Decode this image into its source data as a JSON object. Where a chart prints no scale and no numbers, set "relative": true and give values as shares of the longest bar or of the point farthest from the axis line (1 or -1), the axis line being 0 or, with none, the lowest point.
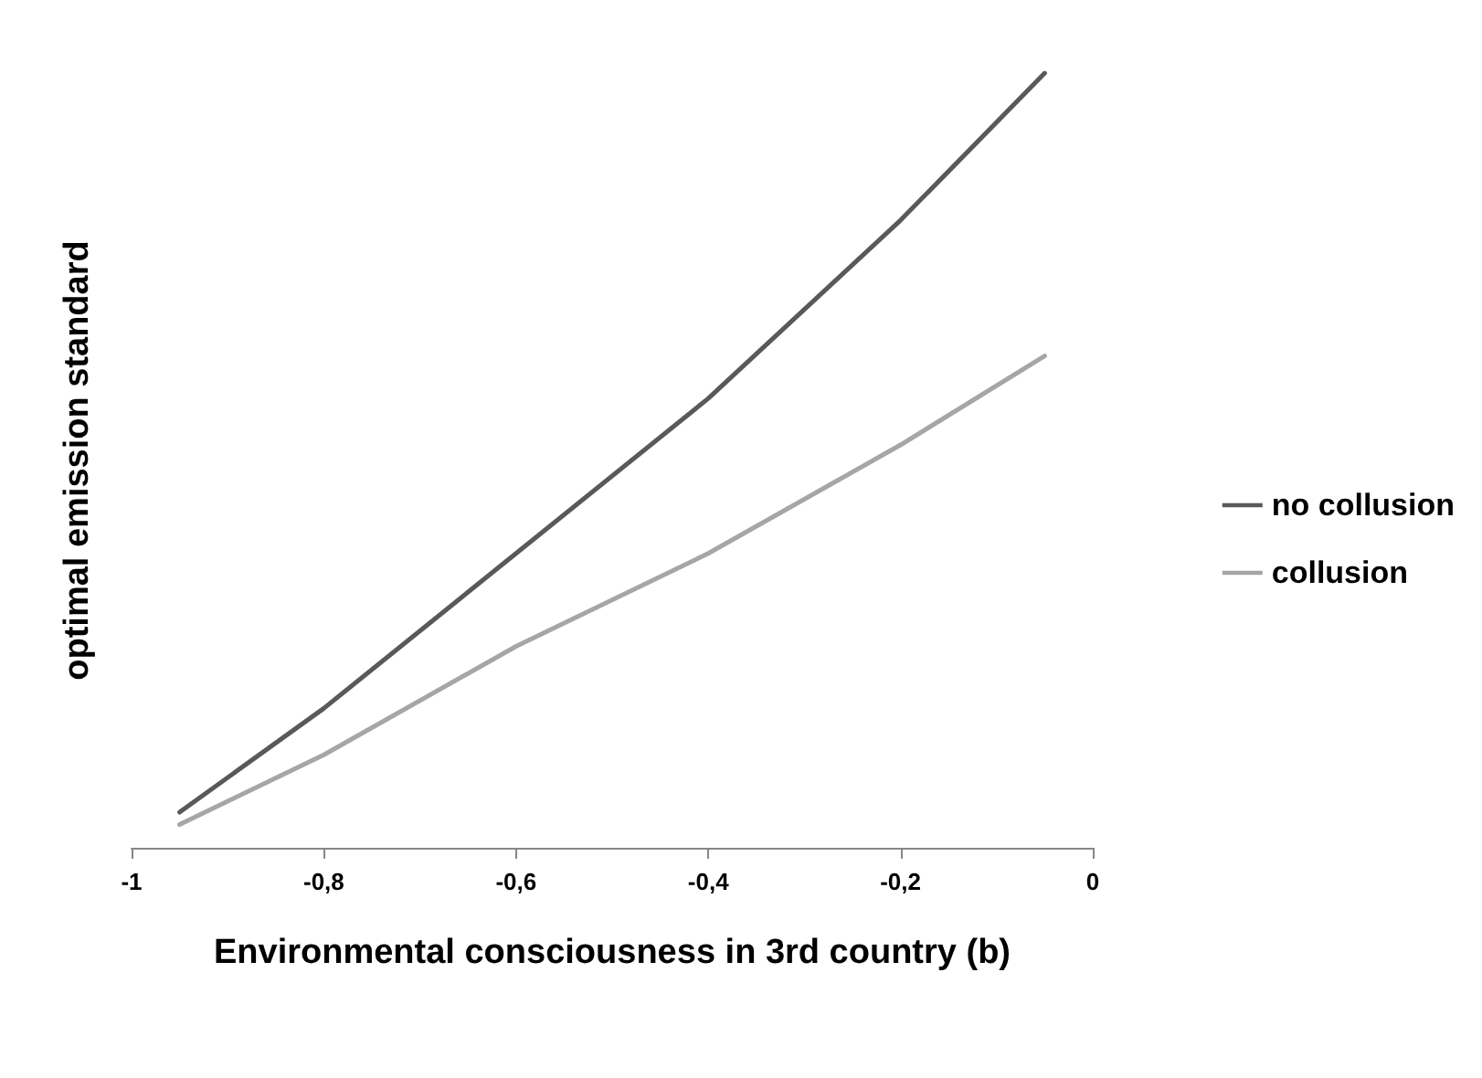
{
  "chart_data": {
    "type": "line",
    "relative": true,
    "xlabel": "Environmental consciousness in 3rd country (b)",
    "ylabel": "optimal emission standard",
    "x": [
      -0.95,
      -0.8,
      -0.6,
      -0.4,
      -0.2,
      -0.05
    ],
    "series": [
      {
        "name": "no collusion",
        "color": "#595959",
        "values": [
          0.046,
          0.18,
          0.38,
          0.58,
          0.81,
          1
        ]
      },
      {
        "name": "collusion",
        "color": "#a6a6a6",
        "values": [
          0.03,
          0.12,
          0.26,
          0.38,
          0.52,
          0.635
        ]
      }
    ],
    "xlim": [
      -1,
      0
    ],
    "xticks": [
      {
        "value": -1,
        "label": "-1"
      },
      {
        "value": -0.8,
        "label": "-0,8"
      },
      {
        "value": -0.6,
        "label": "-0,6"
      },
      {
        "value": -0.4,
        "label": "-0,4"
      },
      {
        "value": -0.2,
        "label": "-0,2"
      },
      {
        "value": 0,
        "label": "0"
      }
    ],
    "legend": "right",
    "grid": false,
    "marker": "none",
    "line_style": "solid"
  }
}
